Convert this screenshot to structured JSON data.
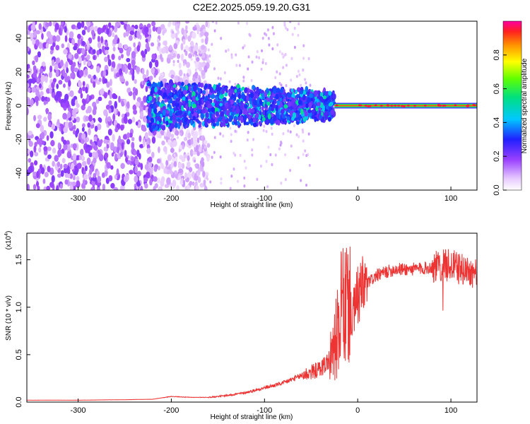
{
  "page_title": "C2E2.2025.059.19.20.G31",
  "chart_data": [
    {
      "type": "heatmap",
      "title": "C2E2.2025.059.19.20.G31",
      "xlabel": "Height of straight line (km)",
      "ylabel": "Frequency (Hz)",
      "xlim": [
        -355,
        128
      ],
      "ylim": [
        -50,
        50
      ],
      "x_ticks": [
        "-300",
        "-200",
        "-100",
        "0",
        "100"
      ],
      "x_tick_values": [
        -300,
        -200,
        -100,
        0,
        100
      ],
      "y_ticks": [
        "-40",
        "-20",
        "0",
        "20",
        "40"
      ],
      "y_tick_values": [
        -40,
        -20,
        0,
        20,
        40
      ],
      "colorbar": {
        "label": "Normalized spectral amplitude",
        "range": [
          0,
          1
        ],
        "ticks": [
          "0.0",
          "0.2",
          "0.4",
          "0.6",
          "0.8"
        ],
        "tick_values": [
          0.0,
          0.2,
          0.4,
          0.6,
          0.8
        ]
      },
      "features": {
        "noise_region_x": [
          -355,
          -160
        ],
        "broadband_region_x": [
          -225,
          -25
        ],
        "carrier_line_x": [
          -25,
          128
        ],
        "carrier_frequency_hz": 0
      }
    },
    {
      "type": "line",
      "xlabel": "Height of straight line (km)",
      "ylabel": "SNR (10 * v/v)",
      "y_multiplier": "(x10",
      "y_multiplier_exp": "4",
      "y_multiplier_close": ")",
      "xlim": [
        -355,
        128
      ],
      "ylim": [
        0,
        1.78
      ],
      "x_ticks": [
        "-300",
        "-200",
        "-100",
        "0",
        "100"
      ],
      "x_tick_values": [
        -300,
        -200,
        -100,
        0,
        100
      ],
      "y_ticks": [
        "0.0",
        "0.5",
        "1.0",
        "1.5"
      ],
      "y_tick_values": [
        0.0,
        0.5,
        1.0,
        1.5
      ],
      "series": [
        {
          "name": "SNR",
          "color": "#ee3333",
          "x": [
            -355,
            -300,
            -250,
            -220,
            -200,
            -180,
            -160,
            -140,
            -120,
            -100,
            -80,
            -60,
            -40,
            -30,
            -25,
            -20,
            -17,
            -15,
            -12,
            -10,
            -5,
            0,
            10,
            20,
            30,
            40,
            60,
            80,
            100,
            110,
            120,
            128
          ],
          "y": [
            0.02,
            0.02,
            0.025,
            0.03,
            0.06,
            0.05,
            0.05,
            0.07,
            0.1,
            0.15,
            0.2,
            0.28,
            0.35,
            0.45,
            0.6,
            0.8,
            1.05,
            0.95,
            1.0,
            1.05,
            0.9,
            1.12,
            1.25,
            1.33,
            1.37,
            1.4,
            1.4,
            1.42,
            1.45,
            1.4,
            1.38,
            1.35
          ]
        }
      ]
    }
  ]
}
